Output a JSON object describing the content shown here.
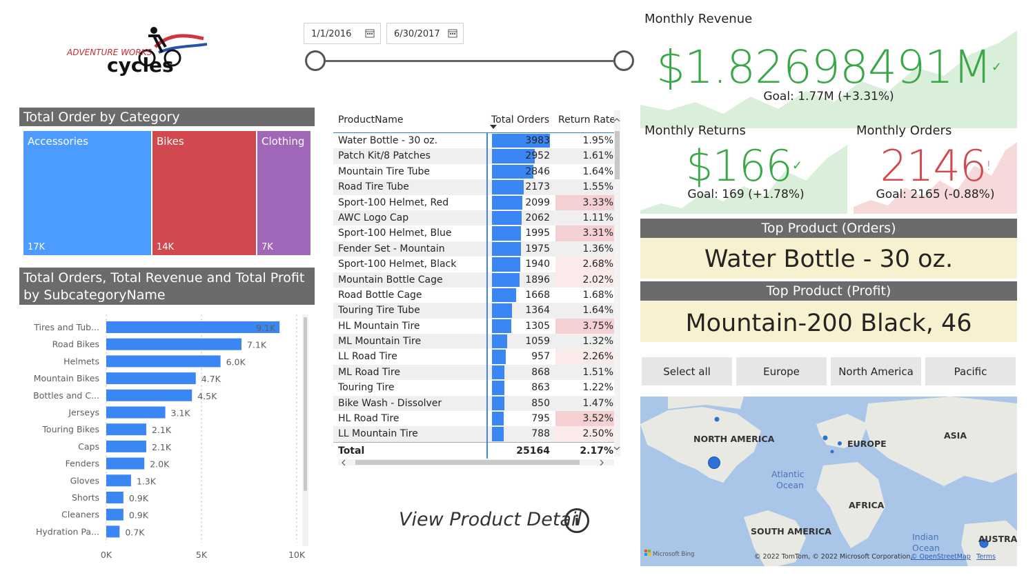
{
  "logo": {
    "line1": "ADVENTURE WORKS",
    "line2": "cycles"
  },
  "date_slicer": {
    "start": "1/1/2016",
    "end": "6/30/2017"
  },
  "treemap": {
    "title": "Total Order by Category",
    "items": [
      {
        "label": "Accessories",
        "value": "17K",
        "color": "#4c9bff"
      },
      {
        "label": "Bikes",
        "value": "14K",
        "color": "#d1484e"
      },
      {
        "label": "Clothing",
        "value": "7K",
        "color": "#a066b8"
      }
    ]
  },
  "bar_chart": {
    "title": "Total Orders, Total Revenue and Total Profit by SubcategoryName",
    "x_ticks": [
      "0K",
      "5K",
      "10K"
    ]
  },
  "chart_data": {
    "type": "bar",
    "orientation": "horizontal",
    "categories": [
      "Tires and Tub...",
      "Road Bikes",
      "Helmets",
      "Mountain Bikes",
      "Bottles and C...",
      "Jerseys",
      "Touring Bikes",
      "Caps",
      "Fenders",
      "Gloves",
      "Shorts",
      "Cleaners",
      "Hydration Pa..."
    ],
    "values": [
      9100,
      7100,
      6000,
      4700,
      4500,
      3100,
      2100,
      2100,
      2000,
      1300,
      900,
      900,
      700
    ],
    "data_labels": [
      "9.1K",
      "7.1K",
      "6.0K",
      "4.7K",
      "4.5K",
      "3.1K",
      "2.1K",
      "2.1K",
      "2.0K",
      "1.3K",
      "0.9K",
      "0.9K",
      "0.7K"
    ],
    "title": "Total Orders, Total Revenue and Total Profit by SubcategoryName",
    "xlim": [
      0,
      10000
    ],
    "x_tick_labels": [
      "0K",
      "5K",
      "10K"
    ],
    "grid": true,
    "bar_color": "#3a86f2"
  },
  "product_table": {
    "headers": {
      "name": "ProductName",
      "orders": "Total Orders",
      "rate": "Return Rate"
    },
    "max_orders": 3983,
    "rows": [
      {
        "name": "Water Bottle - 30 oz.",
        "orders": 3983,
        "orders_label": "3983",
        "rate": "1.95%",
        "highlight": 0
      },
      {
        "name": "Patch Kit/8 Patches",
        "orders": 2952,
        "orders_label": "2952",
        "rate": "1.61%",
        "highlight": 0
      },
      {
        "name": "Mountain Tire Tube",
        "orders": 2846,
        "orders_label": "2846",
        "rate": "1.64%",
        "highlight": 0
      },
      {
        "name": "Road Tire Tube",
        "orders": 2173,
        "orders_label": "2173",
        "rate": "1.55%",
        "highlight": 0
      },
      {
        "name": "Sport-100 Helmet, Red",
        "orders": 2099,
        "orders_label": "2099",
        "rate": "3.33%",
        "highlight": 2
      },
      {
        "name": "AWC Logo Cap",
        "orders": 2062,
        "orders_label": "2062",
        "rate": "1.11%",
        "highlight": 0
      },
      {
        "name": "Sport-100 Helmet, Blue",
        "orders": 1995,
        "orders_label": "1995",
        "rate": "3.31%",
        "highlight": 2
      },
      {
        "name": "Fender Set - Mountain",
        "orders": 1975,
        "orders_label": "1975",
        "rate": "1.36%",
        "highlight": 0
      },
      {
        "name": "Sport-100 Helmet, Black",
        "orders": 1940,
        "orders_label": "1940",
        "rate": "2.68%",
        "highlight": 1
      },
      {
        "name": "Mountain Bottle Cage",
        "orders": 1896,
        "orders_label": "1896",
        "rate": "2.02%",
        "highlight": 1
      },
      {
        "name": "Road Bottle Cage",
        "orders": 1668,
        "orders_label": "1668",
        "rate": "1.68%",
        "highlight": 0
      },
      {
        "name": "Touring Tire Tube",
        "orders": 1364,
        "orders_label": "1364",
        "rate": "1.64%",
        "highlight": 0
      },
      {
        "name": "HL Mountain Tire",
        "orders": 1305,
        "orders_label": "1305",
        "rate": "3.75%",
        "highlight": 2
      },
      {
        "name": "ML Mountain Tire",
        "orders": 1059,
        "orders_label": "1059",
        "rate": "1.32%",
        "highlight": 0
      },
      {
        "name": "LL Road Tire",
        "orders": 957,
        "orders_label": "957",
        "rate": "2.26%",
        "highlight": 1
      },
      {
        "name": "ML Road Tire",
        "orders": 868,
        "orders_label": "868",
        "rate": "1.51%",
        "highlight": 0
      },
      {
        "name": "Touring Tire",
        "orders": 863,
        "orders_label": "863",
        "rate": "1.22%",
        "highlight": 0
      },
      {
        "name": "Bike Wash - Dissolver",
        "orders": 850,
        "orders_label": "850",
        "rate": "1.47%",
        "highlight": 0
      },
      {
        "name": "HL Road Tire",
        "orders": 795,
        "orders_label": "795",
        "rate": "3.52%",
        "highlight": 2
      },
      {
        "name": "LL Mountain Tire",
        "orders": 788,
        "orders_label": "788",
        "rate": "2.50%",
        "highlight": 1
      }
    ],
    "total": {
      "label": "Total",
      "orders": "25164",
      "rate": "2.17%"
    }
  },
  "view_detail": {
    "label": "View Product Detail",
    "icon_glyph": "i"
  },
  "kpi": {
    "revenue": {
      "title": "Monthly Revenue",
      "value": "$1.82698491M",
      "goal": "Goal: 1.77M (+3.31%)",
      "color": "#3aa848"
    },
    "returns": {
      "title": "Monthly Returns",
      "value": "$166",
      "goal": "Goal: 169 (+1.78%)",
      "color": "#3aa848"
    },
    "orders": {
      "title": "Monthly Orders",
      "value": "2146",
      "goal": "Goal: 2165 (-0.88%)",
      "color": "#d1484e",
      "status": "!"
    }
  },
  "top_product_orders": {
    "title": "Top Product (Orders)",
    "value": "Water Bottle - 30 oz."
  },
  "top_product_profit": {
    "title": "Top Product (Profit)",
    "value": "Mountain-200 Black, 46"
  },
  "regions": [
    "Select all",
    "Europe",
    "North America",
    "Pacific"
  ],
  "map": {
    "labels": {
      "north_america": "NORTH AMERICA",
      "europe": "EUROPE",
      "asia": "ASIA",
      "atlantic_1": "Atlantic",
      "atlantic_2": "Ocean",
      "africa": "AFRICA",
      "south_america": "SOUTH AMERICA",
      "indian_1": "Indian",
      "indian_2": "Ocean",
      "australia": "AUSTRAL"
    },
    "brand": "Microsoft Bing",
    "attribution": "© 2022 TomTom, © 2022 Microsoft Corporation,",
    "osm_link": "© OpenStreetMap",
    "terms_link": "Terms"
  }
}
